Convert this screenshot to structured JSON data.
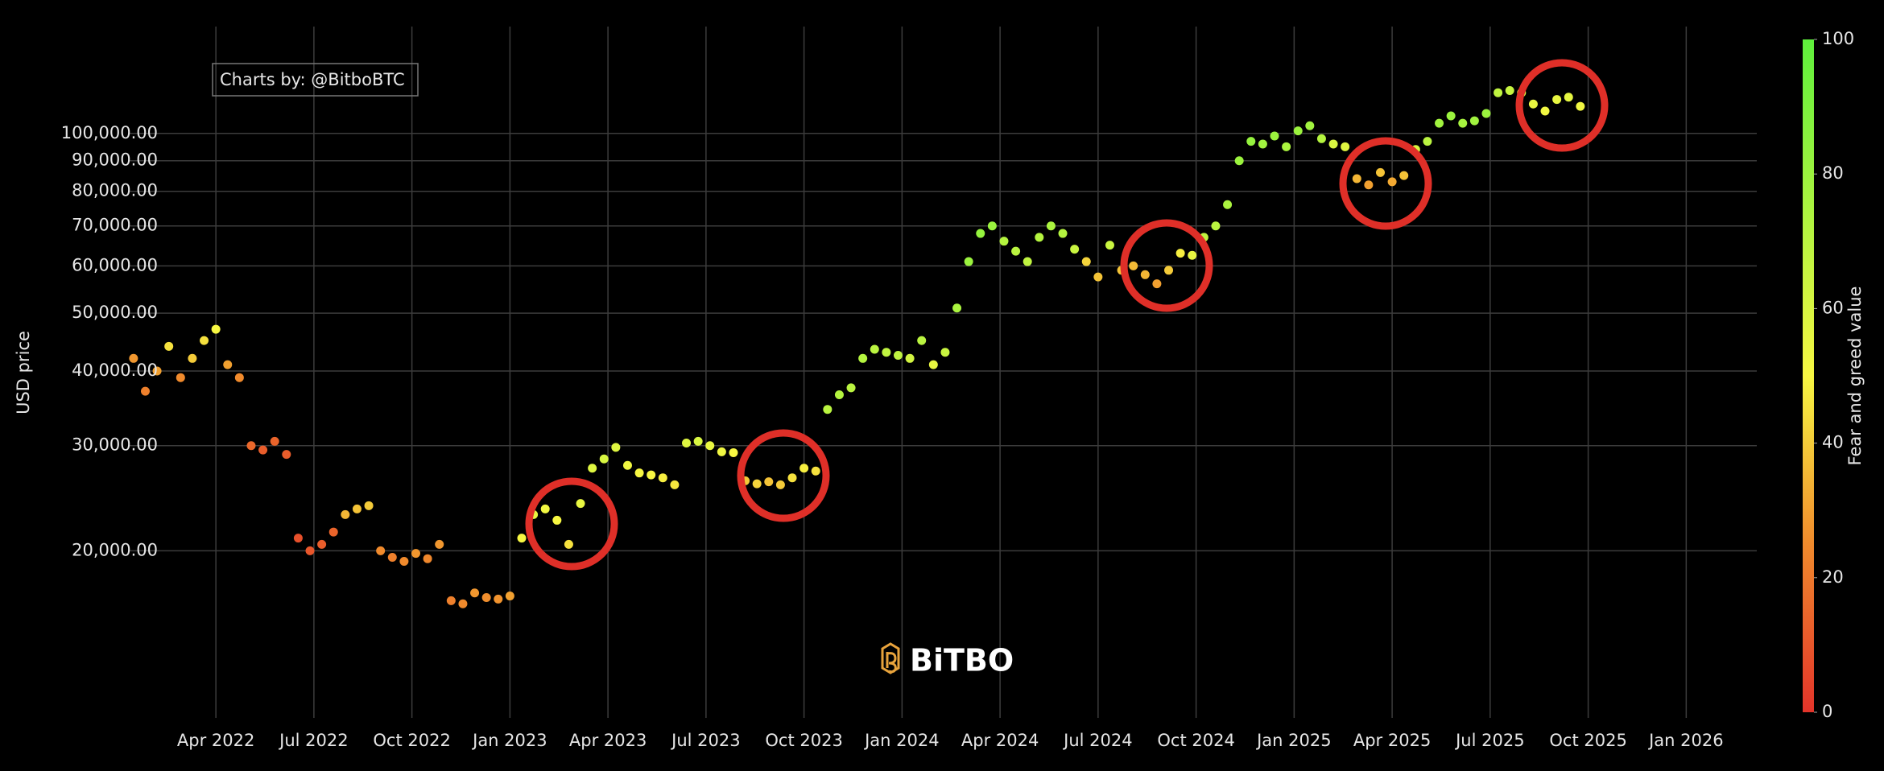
{
  "chart_data": {
    "type": "scatter",
    "annotation": "Charts by: @BitboBTC",
    "watermark": "BiTBO",
    "y_label": "USD price",
    "colorbar_label": "Fear and greed value",
    "yscale": "log",
    "grid": true,
    "colorscale": [
      [
        0,
        "#e3342a"
      ],
      [
        25,
        "#f08a2c"
      ],
      [
        50,
        "#f7f742"
      ],
      [
        100,
        "#5ef03c"
      ]
    ],
    "colorbar_lim": [
      0,
      100
    ],
    "colorbar_ticks": [
      0,
      20,
      40,
      60,
      80,
      100
    ],
    "xlim": [
      2022.03,
      2026.18
    ],
    "xticks": [
      {
        "value": 2022.25,
        "label": "Apr 2022"
      },
      {
        "value": 2022.5,
        "label": "Jul 2022"
      },
      {
        "value": 2022.75,
        "label": "Oct 2022"
      },
      {
        "value": 2023.0,
        "label": "Jan 2023"
      },
      {
        "value": 2023.25,
        "label": "Apr 2023"
      },
      {
        "value": 2023.5,
        "label": "Jul 2023"
      },
      {
        "value": 2023.75,
        "label": "Oct 2023"
      },
      {
        "value": 2024.0,
        "label": "Jan 2024"
      },
      {
        "value": 2024.25,
        "label": "Apr 2024"
      },
      {
        "value": 2024.5,
        "label": "Jul 2024"
      },
      {
        "value": 2024.75,
        "label": "Oct 2024"
      },
      {
        "value": 2025.0,
        "label": "Jan 2025"
      },
      {
        "value": 2025.25,
        "label": "Apr 2025"
      },
      {
        "value": 2025.5,
        "label": "Jul 2025"
      },
      {
        "value": 2025.75,
        "label": "Oct 2025"
      },
      {
        "value": 2026.0,
        "label": "Jan 2026"
      }
    ],
    "ylim": [
      10500,
      151000
    ],
    "yticks": [
      {
        "value": 20000,
        "label": "20,000.00"
      },
      {
        "value": 30000,
        "label": "30,000.00"
      },
      {
        "value": 40000,
        "label": "40,000.00"
      },
      {
        "value": 50000,
        "label": "50,000.00"
      },
      {
        "value": 60000,
        "label": "60,000.00"
      },
      {
        "value": 70000,
        "label": "70,000.00"
      },
      {
        "value": 80000,
        "label": "80,000.00"
      },
      {
        "value": 90000,
        "label": "90,000.00"
      },
      {
        "value": 100000,
        "label": "100,000.00"
      }
    ],
    "x": [
      2022.04,
      2022.07,
      2022.1,
      2022.13,
      2022.16,
      2022.19,
      2022.22,
      2022.25,
      2022.28,
      2022.31,
      2022.34,
      2022.37,
      2022.4,
      2022.43,
      2022.46,
      2022.49,
      2022.52,
      2022.55,
      2022.58,
      2022.61,
      2022.64,
      2022.67,
      2022.7,
      2022.73,
      2022.76,
      2022.79,
      2022.82,
      2022.85,
      2022.88,
      2022.91,
      2022.94,
      2022.97,
      2023.0,
      2023.03,
      2023.06,
      2023.09,
      2023.12,
      2023.15,
      2023.18,
      2023.21,
      2023.24,
      2023.27,
      2023.3,
      2023.33,
      2023.36,
      2023.39,
      2023.42,
      2023.45,
      2023.48,
      2023.51,
      2023.54,
      2023.57,
      2023.6,
      2023.63,
      2023.66,
      2023.69,
      2023.72,
      2023.75,
      2023.78,
      2023.81,
      2023.84,
      2023.87,
      2023.9,
      2023.93,
      2023.96,
      2023.99,
      2024.02,
      2024.05,
      2024.08,
      2024.11,
      2024.14,
      2024.17,
      2024.2,
      2024.23,
      2024.26,
      2024.29,
      2024.32,
      2024.35,
      2024.38,
      2024.41,
      2024.44,
      2024.47,
      2024.5,
      2024.53,
      2024.56,
      2024.59,
      2024.62,
      2024.65,
      2024.68,
      2024.71,
      2024.74,
      2024.77,
      2024.8,
      2024.83,
      2024.86,
      2024.89,
      2024.92,
      2024.95,
      2024.98,
      2025.01,
      2025.04,
      2025.07,
      2025.1,
      2025.13,
      2025.16,
      2025.19,
      2025.22,
      2025.25,
      2025.28,
      2025.31,
      2025.34,
      2025.37,
      2025.4,
      2025.43,
      2025.46,
      2025.49,
      2025.52,
      2025.55,
      2025.58,
      2025.61,
      2025.64,
      2025.67,
      2025.7,
      2025.73
    ],
    "values": [
      42000,
      37000,
      40000,
      44000,
      39000,
      42000,
      45000,
      47000,
      41000,
      39000,
      30000,
      29500,
      30500,
      29000,
      21000,
      20000,
      20500,
      21500,
      23000,
      23500,
      23800,
      20000,
      19500,
      19200,
      19800,
      19400,
      20500,
      16500,
      16300,
      17000,
      16700,
      16600,
      16800,
      21000,
      23000,
      23500,
      22500,
      20500,
      24000,
      27500,
      28500,
      29800,
      27800,
      27000,
      26800,
      26500,
      25800,
      30300,
      30500,
      30000,
      29300,
      29200,
      26200,
      25900,
      26100,
      25800,
      26500,
      27500,
      27200,
      34500,
      36500,
      37500,
      42000,
      43500,
      43000,
      42500,
      42000,
      45000,
      41000,
      43000,
      51000,
      61000,
      68000,
      70000,
      66000,
      63500,
      61000,
      67000,
      70000,
      68000,
      64000,
      61000,
      57500,
      65000,
      59000,
      60000,
      58000,
      56000,
      59000,
      63000,
      62500,
      67000,
      70000,
      76000,
      90000,
      97000,
      96000,
      99000,
      95000,
      101000,
      103000,
      98000,
      96000,
      95000,
      84000,
      82000,
      86000,
      83000,
      85000,
      94000,
      97000,
      104000,
      107000,
      104000,
      105000,
      108000,
      117000,
      118000,
      117000,
      112000,
      109000,
      114000,
      115000,
      111000
    ],
    "fear_greed": [
      28,
      22,
      30,
      45,
      25,
      40,
      45,
      50,
      30,
      25,
      15,
      12,
      14,
      12,
      8,
      10,
      12,
      14,
      35,
      38,
      40,
      25,
      22,
      25,
      28,
      24,
      28,
      22,
      25,
      28,
      26,
      27,
      30,
      50,
      55,
      52,
      50,
      45,
      55,
      58,
      60,
      58,
      52,
      50,
      50,
      48,
      46,
      58,
      60,
      55,
      52,
      50,
      40,
      42,
      38,
      40,
      45,
      48,
      45,
      70,
      72,
      70,
      72,
      70,
      68,
      68,
      62,
      70,
      55,
      65,
      75,
      80,
      82,
      80,
      72,
      70,
      68,
      72,
      75,
      72,
      65,
      42,
      38,
      65,
      38,
      36,
      35,
      30,
      40,
      48,
      55,
      68,
      70,
      75,
      80,
      82,
      78,
      80,
      75,
      80,
      78,
      72,
      60,
      58,
      35,
      30,
      38,
      32,
      38,
      60,
      70,
      78,
      80,
      76,
      78,
      80,
      68,
      66,
      60,
      55,
      52,
      55,
      56,
      52
    ]
  }
}
